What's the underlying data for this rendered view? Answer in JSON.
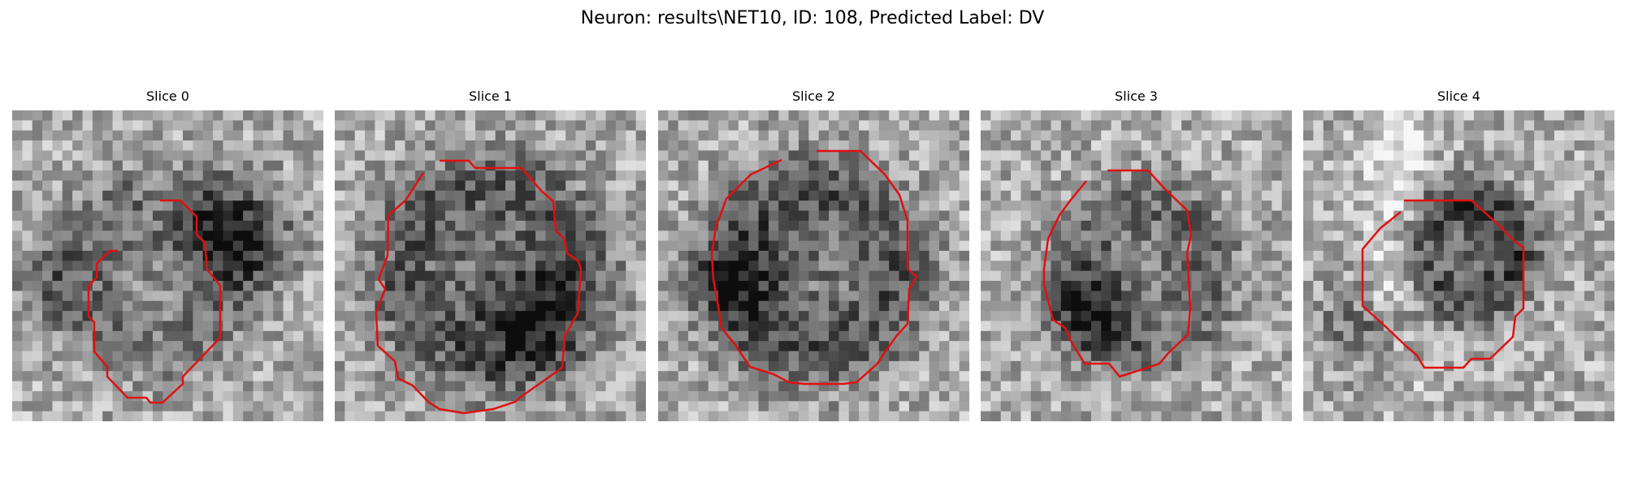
{
  "title": "Neuron: results\\NET10, ID: 108, Predicted Label: DV",
  "contour_color": "#e01010",
  "colormap": "gray",
  "panels": [
    {
      "title": "Slice 0",
      "seed": 11,
      "blob_center": [
        0.46,
        0.52
      ],
      "blob_radius": 0.33,
      "blob_depth": 0.3,
      "extra_dark": [
        [
          0.72,
          0.4,
          0.12,
          0.45
        ],
        [
          0.12,
          0.55,
          0.1,
          0.2
        ]
      ]
    },
    {
      "title": "Slice 1",
      "seed": 23,
      "blob_center": [
        0.5,
        0.52
      ],
      "blob_radius": 0.38,
      "blob_depth": 0.42,
      "extra_dark": [
        [
          0.62,
          0.65,
          0.12,
          0.35
        ]
      ]
    },
    {
      "title": "Slice 2",
      "seed": 37,
      "blob_center": [
        0.5,
        0.52
      ],
      "blob_radius": 0.36,
      "blob_depth": 0.45,
      "extra_dark": [
        [
          0.25,
          0.55,
          0.1,
          0.3
        ]
      ]
    },
    {
      "title": "Slice 3",
      "seed": 51,
      "blob_center": [
        0.52,
        0.53
      ],
      "blob_radius": 0.3,
      "blob_depth": 0.35,
      "extra_dark": [
        [
          0.35,
          0.65,
          0.1,
          0.35
        ]
      ]
    },
    {
      "title": "Slice 4",
      "seed": 67,
      "blob_center": [
        0.53,
        0.45
      ],
      "blob_radius": 0.22,
      "blob_depth": 0.55,
      "extra_dark": [
        [
          0.18,
          0.7,
          0.1,
          0.25
        ]
      ],
      "bright_band": [
        0.3,
        0.18,
        0.1,
        0.45
      ]
    }
  ]
}
